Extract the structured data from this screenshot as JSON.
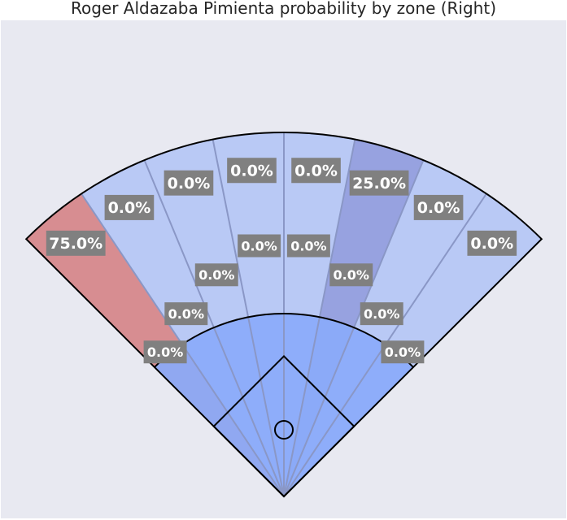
{
  "chart_data": {
    "type": "heatmap",
    "title": "Roger Aldazaba Pimienta probability by zone (Right)",
    "xlabel": "",
    "ylabel": "",
    "grid": false,
    "legend": "none",
    "zones": [
      {
        "zone": "outfield-1",
        "depth": "outfield",
        "value": 75.0,
        "label": "75.0%"
      },
      {
        "zone": "outfield-2",
        "depth": "outfield",
        "value": 0.0,
        "label": "0.0%"
      },
      {
        "zone": "outfield-3",
        "depth": "outfield",
        "value": 0.0,
        "label": "0.0%"
      },
      {
        "zone": "outfield-4",
        "depth": "outfield",
        "value": 0.0,
        "label": "0.0%"
      },
      {
        "zone": "outfield-5",
        "depth": "outfield",
        "value": 0.0,
        "label": "0.0%"
      },
      {
        "zone": "outfield-6",
        "depth": "outfield",
        "value": 25.0,
        "label": "25.0%"
      },
      {
        "zone": "outfield-7",
        "depth": "outfield",
        "value": 0.0,
        "label": "0.0%"
      },
      {
        "zone": "outfield-8",
        "depth": "outfield",
        "value": 0.0,
        "label": "0.0%"
      },
      {
        "zone": "infield-1",
        "depth": "infield",
        "value": 0.0,
        "label": "0.0%"
      },
      {
        "zone": "infield-2",
        "depth": "infield",
        "value": 0.0,
        "label": "0.0%"
      },
      {
        "zone": "infield-3",
        "depth": "infield",
        "value": 0.0,
        "label": "0.0%"
      },
      {
        "zone": "infield-4",
        "depth": "infield",
        "value": 0.0,
        "label": "0.0%"
      },
      {
        "zone": "infield-5",
        "depth": "infield",
        "value": 0.0,
        "label": "0.0%"
      },
      {
        "zone": "infield-6",
        "depth": "infield",
        "value": 0.0,
        "label": "0.0%"
      },
      {
        "zone": "infield-7",
        "depth": "infield",
        "value": 0.0,
        "label": "0.0%"
      },
      {
        "zone": "infield-8",
        "depth": "infield",
        "value": 0.0,
        "label": "0.0%"
      }
    ]
  },
  "colors": {
    "background": "#e8e9f1",
    "zone_zero": "#b9c9f5",
    "zone_mid": "#97a2e0",
    "zone_high": "#d78d91",
    "infield_overlay": "#8aaafa",
    "divider": "#8a97c6",
    "outline": "#000000",
    "label_box": "#808080",
    "label_text": "#ffffff"
  }
}
